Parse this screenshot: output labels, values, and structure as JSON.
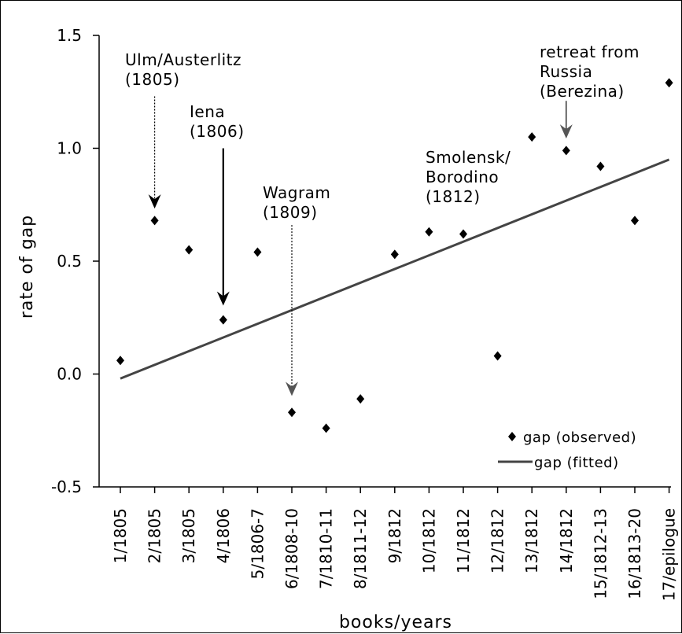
{
  "chart_data": {
    "type": "scatter",
    "title": "",
    "xlabel": "books/years",
    "ylabel": "rate of gap",
    "ylim": [
      -0.5,
      1.5
    ],
    "yticks": [
      "1.5",
      "1.0",
      "0.5",
      "0.0",
      "-0.5"
    ],
    "ytick_values": [
      1.5,
      1.0,
      0.5,
      0.0,
      -0.5
    ],
    "categories": [
      "1/1805",
      "2/1805",
      "3/1805",
      "4/1806",
      "5/1806-7",
      "6/1808-10",
      "7/1810-11",
      "8/1811-12",
      "9/1812",
      "10/1812",
      "11/1812",
      "12/1812",
      "13/1812",
      "14/1812",
      "15/1812-13",
      "16/1813-20",
      "17/epilogue"
    ],
    "series": [
      {
        "name": "gap (observed)",
        "kind": "scatter",
        "marker": "diamond",
        "values": [
          0.06,
          0.68,
          0.55,
          0.24,
          0.54,
          -0.17,
          -0.24,
          -0.11,
          0.53,
          0.63,
          0.62,
          0.08,
          1.05,
          0.99,
          0.92,
          0.68,
          1.29
        ]
      },
      {
        "name": "gap (fitted)",
        "kind": "line",
        "values_endpoints": [
          -0.02,
          0.95
        ]
      }
    ],
    "annotations": [
      {
        "lines": [
          "Ulm/Austerlitz",
          "(1805)"
        ],
        "target_index": 1,
        "target_y": 0.74,
        "arrow_from_y": 1.23
      },
      {
        "lines": [
          "Iena",
          "(1806)"
        ],
        "target_index": 3,
        "target_y": 0.31,
        "arrow_from_y": 1.0
      },
      {
        "lines": [
          "Wagram",
          "(1809)"
        ],
        "target_index": 5,
        "target_y": -0.09,
        "arrow_from_y": 0.66
      },
      {
        "lines": [
          "Smolensk/",
          "Borodino",
          "(1812)"
        ],
        "target_index": null
      },
      {
        "lines": [
          "retreat  from",
          "Russia",
          "(Berezina)"
        ],
        "target_index": 13,
        "target_y": 1.05,
        "arrow_from_y": 1.21
      }
    ],
    "legend": "bottom-right",
    "grid": false
  }
}
